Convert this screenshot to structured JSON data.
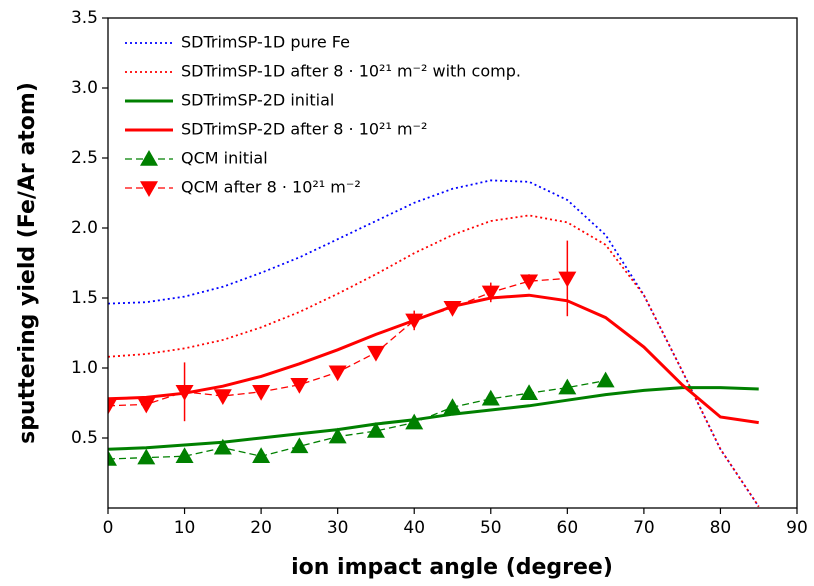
{
  "chart_data": {
    "type": "line",
    "xlabel": "ion impact angle (degree)",
    "ylabel": "sputtering yield (Fe/Ar atom)",
    "xlim": [
      0,
      90
    ],
    "xticks": [
      0,
      10,
      20,
      30,
      40,
      50,
      60,
      70,
      80,
      90
    ],
    "ylim": [
      0,
      3.5
    ],
    "yticks": [
      0.5,
      1.0,
      1.5,
      2.0,
      2.5,
      3.0,
      3.5
    ],
    "legend": "upper left",
    "series": [
      {
        "name": "SDTrimSP-1D pure Fe",
        "color": "#0000ff",
        "style": "dotted",
        "x": [
          0,
          5,
          10,
          15,
          20,
          25,
          30,
          35,
          40,
          45,
          50,
          55,
          60,
          65,
          70,
          75,
          80,
          85
        ],
        "values": [
          1.46,
          1.47,
          1.51,
          1.58,
          1.68,
          1.79,
          1.92,
          2.05,
          2.18,
          2.28,
          2.34,
          2.33,
          2.2,
          1.95,
          1.52,
          0.98,
          0.42,
          0.01
        ]
      },
      {
        "name": "SDTrimSP-1D after 8 · 10²¹ m⁻² with comp.",
        "color": "#ff0000",
        "style": "dotted",
        "x": [
          0,
          5,
          10,
          15,
          20,
          25,
          30,
          35,
          40,
          45,
          50,
          55,
          60,
          65,
          70,
          75,
          80,
          85
        ],
        "values": [
          1.08,
          1.1,
          1.14,
          1.2,
          1.29,
          1.4,
          1.53,
          1.67,
          1.82,
          1.95,
          2.05,
          2.09,
          2.04,
          1.88,
          1.52,
          0.98,
          0.42,
          0.01
        ]
      },
      {
        "name": "SDTrimSP-2D initial",
        "color": "#008000",
        "style": "solid",
        "x": [
          0,
          5,
          10,
          15,
          20,
          25,
          30,
          35,
          40,
          45,
          50,
          55,
          60,
          65,
          70,
          75,
          80,
          85
        ],
        "values": [
          0.42,
          0.43,
          0.45,
          0.47,
          0.5,
          0.53,
          0.56,
          0.6,
          0.63,
          0.67,
          0.7,
          0.73,
          0.77,
          0.81,
          0.84,
          0.86,
          0.86,
          0.85
        ]
      },
      {
        "name": "SDTrimSP-2D after 8 · 10²¹ m⁻²",
        "color": "#ff0000",
        "style": "solid",
        "x": [
          0,
          5,
          10,
          15,
          20,
          25,
          30,
          35,
          40,
          45,
          50,
          55,
          60,
          65,
          70,
          75,
          80,
          85
        ],
        "values": [
          0.78,
          0.79,
          0.82,
          0.87,
          0.94,
          1.03,
          1.13,
          1.24,
          1.34,
          1.44,
          1.5,
          1.52,
          1.48,
          1.36,
          1.15,
          0.88,
          0.65,
          0.61
        ]
      },
      {
        "name": "QCM initial",
        "color": "#008000",
        "style": "dashed",
        "marker": "^",
        "x": [
          0,
          5,
          10,
          15,
          20,
          25,
          30,
          35,
          40,
          45,
          50,
          55,
          60,
          65
        ],
        "values": [
          0.35,
          0.36,
          0.37,
          0.43,
          0.37,
          0.44,
          0.51,
          0.55,
          0.61,
          0.72,
          0.78,
          0.82,
          0.86,
          0.91
        ]
      },
      {
        "name": "QCM after 8 · 10²¹ m⁻²",
        "color": "#ff0000",
        "style": "dashed",
        "marker": "v",
        "x": [
          0,
          5,
          10,
          15,
          20,
          25,
          30,
          35,
          40,
          45,
          50,
          55,
          60
        ],
        "values": [
          0.73,
          0.74,
          0.83,
          0.8,
          0.83,
          0.88,
          0.97,
          1.11,
          1.34,
          1.43,
          1.54,
          1.62,
          1.64
        ],
        "errors": [
          null,
          null,
          0.21,
          null,
          null,
          null,
          null,
          null,
          0.07,
          null,
          0.07,
          0.05,
          0.27
        ]
      }
    ]
  }
}
